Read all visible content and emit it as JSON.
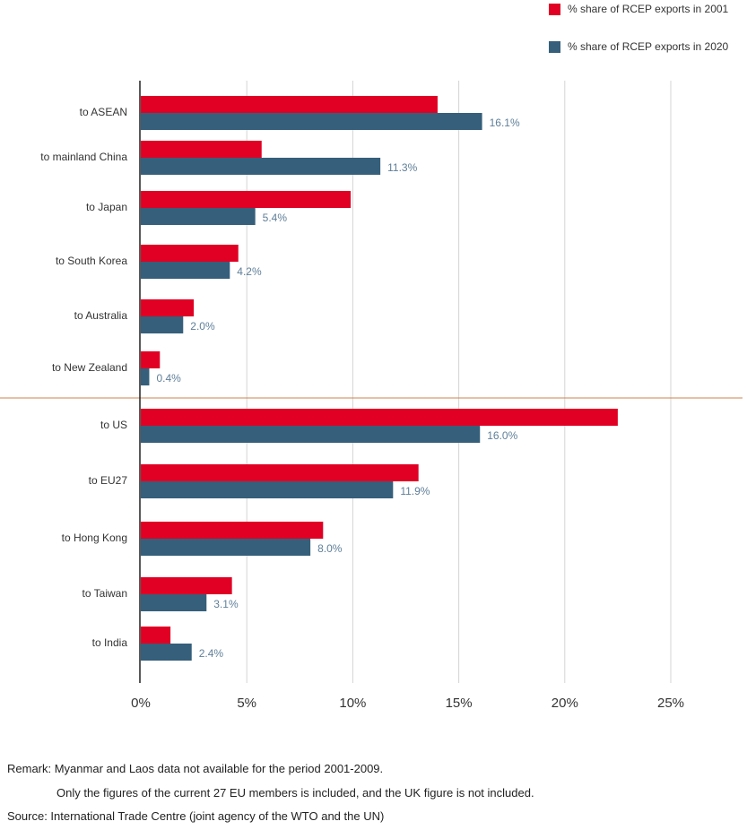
{
  "chart_data": {
    "type": "bar",
    "orientation": "horizontal",
    "categories": [
      "to ASEAN",
      "to mainland China",
      "to Japan",
      "to South Korea",
      "to Australia",
      "to New Zealand",
      "to US",
      "to EU27",
      "to Hong Kong",
      "to Taiwan",
      "to India"
    ],
    "series": [
      {
        "name": "% share of RCEP exports in 2001",
        "color": "#e10024",
        "values": [
          14.0,
          5.7,
          9.9,
          4.6,
          2.5,
          0.9,
          22.5,
          13.1,
          8.6,
          4.3,
          1.4
        ]
      },
      {
        "name": "% share of RCEP exports in 2020",
        "color": "#355f7b",
        "values": [
          16.1,
          11.3,
          5.4,
          4.2,
          2.0,
          0.4,
          16.0,
          11.9,
          8.0,
          3.1,
          2.4
        ],
        "data_labels": [
          "16.1%",
          "11.3%",
          "5.4%",
          "4.2%",
          "2.0%",
          "0.4%",
          "16.0%",
          "11.9%",
          "8.0%",
          "3.1%",
          "2.4%"
        ]
      }
    ],
    "xlim": [
      0,
      25
    ],
    "x_ticks": [
      "0%",
      "5%",
      "10%",
      "15%",
      "20%",
      "25%"
    ],
    "grid": true,
    "legend_position": "top-right",
    "separator_after": "to New Zealand",
    "separator_color": "#d08050"
  },
  "notes": {
    "remark": "Remark: Myanmar and Laos data not available for the period 2001-2009.",
    "remark2": "Only the figures of the current 27 EU members is included, and the UK figure is not included.",
    "source": "Source: International Trade Centre (joint agency of the WTO and the UN)"
  }
}
